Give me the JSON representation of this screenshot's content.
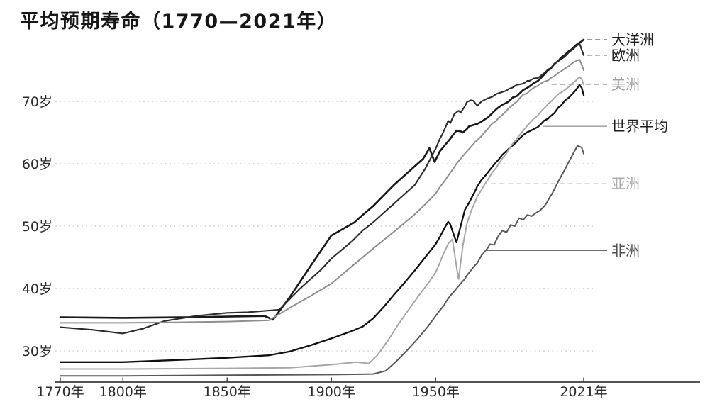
{
  "title": "平均预期寿命（1770—2021年）",
  "chart_data": {
    "type": "line",
    "title": "平均预期寿命（1770—2021年）",
    "grid": "horizontal-dotted",
    "legend_position": "right-line-end-labels",
    "x_axis": {
      "min": 1770,
      "max": 2021,
      "ticks": [
        {
          "year": 1770,
          "label": "1770年"
        },
        {
          "year": 1800,
          "label": "1800年"
        },
        {
          "year": 1850,
          "label": "1850年"
        },
        {
          "year": 1900,
          "label": "1900年"
        },
        {
          "year": 1950,
          "label": "1950年"
        },
        {
          "year": 2021,
          "label": "2021年"
        }
      ]
    },
    "y_axis": {
      "unit": "岁",
      "displayed_range": [
        30,
        70
      ],
      "ticks": [
        {
          "value": 70,
          "label": "70岁"
        },
        {
          "value": 60,
          "label": "60岁"
        },
        {
          "value": 50,
          "label": "50岁"
        },
        {
          "value": 40,
          "label": "40岁"
        },
        {
          "value": 30,
          "label": "30岁"
        }
      ]
    },
    "series": [
      {
        "id": "oceania",
        "name": "大洋洲",
        "color": "#181818",
        "label_color": "#1c1c1c",
        "stroke_width": 2.6,
        "leader": {
          "at_value": 79.9,
          "from_year": 2022.4,
          "style": "dashed",
          "color": "#8a8a8a"
        },
        "points": [
          [
            1770,
            35.4
          ],
          [
            1800,
            35.3
          ],
          [
            1830,
            35.4
          ],
          [
            1850,
            35.5
          ],
          [
            1868,
            35.6
          ],
          [
            1872,
            35.0
          ],
          [
            1880,
            38.6
          ],
          [
            1890,
            43.6
          ],
          [
            1900,
            48.5
          ],
          [
            1911,
            50.6
          ],
          [
            1915,
            51.8
          ],
          [
            1920,
            53.2
          ],
          [
            1930,
            56.6
          ],
          [
            1940,
            59.6
          ],
          [
            1944,
            60.8
          ],
          [
            1947,
            62.5
          ],
          [
            1949.5,
            60.3
          ],
          [
            1952,
            62.0
          ],
          [
            1955,
            63.2
          ],
          [
            1958,
            64.5
          ],
          [
            1960,
            65.3
          ],
          [
            1963,
            65.0
          ],
          [
            1966,
            66.0
          ],
          [
            1970,
            66.4
          ],
          [
            1975,
            67.4
          ],
          [
            1980,
            69.0
          ],
          [
            1985,
            70.0
          ],
          [
            1990,
            71.2
          ],
          [
            1995,
            72.4
          ],
          [
            2000,
            73.6
          ],
          [
            2005,
            75.2
          ],
          [
            2010,
            77.0
          ],
          [
            2015,
            78.3
          ],
          [
            2018,
            79.2
          ],
          [
            2021,
            79.9
          ]
        ]
      },
      {
        "id": "europe",
        "name": "欧洲",
        "color": "#2b2b2b",
        "label_color": "#1c1c1c",
        "stroke_width": 2.1,
        "leader": {
          "at_value": 77.4,
          "from_year": 2022.4,
          "style": "dashed",
          "color": "#8a8a8a"
        },
        "points": [
          [
            1770,
            33.8
          ],
          [
            1785,
            33.4
          ],
          [
            1800,
            32.8
          ],
          [
            1810,
            33.6
          ],
          [
            1820,
            34.8
          ],
          [
            1835,
            35.6
          ],
          [
            1850,
            36.1
          ],
          [
            1860,
            36.2
          ],
          [
            1875,
            36.6
          ],
          [
            1885,
            40.0
          ],
          [
            1895,
            43.0
          ],
          [
            1900,
            44.8
          ],
          [
            1910,
            47.6
          ],
          [
            1915,
            49.3
          ],
          [
            1920,
            50.6
          ],
          [
            1925,
            52.1
          ],
          [
            1930,
            53.6
          ],
          [
            1935,
            55.1
          ],
          [
            1940,
            56.6
          ],
          [
            1945,
            59.2
          ],
          [
            1950,
            62.4
          ],
          [
            1953,
            64.6
          ],
          [
            1956,
            66.9
          ],
          [
            1957,
            66.5
          ],
          [
            1959,
            68.0
          ],
          [
            1961,
            68.5
          ],
          [
            1962,
            68.2
          ],
          [
            1965,
            69.9
          ],
          [
            1968,
            70.1
          ],
          [
            1970,
            69.3
          ],
          [
            1972,
            70.0
          ],
          [
            1975,
            70.5
          ],
          [
            1980,
            71.3
          ],
          [
            1985,
            72.0
          ],
          [
            1990,
            72.7
          ],
          [
            1995,
            73.3
          ],
          [
            2000,
            74.0
          ],
          [
            2005,
            75.3
          ],
          [
            2010,
            76.7
          ],
          [
            2014,
            77.9
          ],
          [
            2017,
            78.7
          ],
          [
            2019,
            79.3
          ],
          [
            2020,
            78.3
          ],
          [
            2021,
            77.4
          ]
        ]
      },
      {
        "id": "americas",
        "name": "美洲",
        "color": "#8e8e8e",
        "label_color": "#9b9b9b",
        "stroke_width": 2.0,
        "leader": {
          "at_value": 72.7,
          "from_year": 2005.6,
          "style": "dashed",
          "color": "#b3b3b3"
        },
        "points": [
          [
            1770,
            34.5
          ],
          [
            1800,
            34.5
          ],
          [
            1830,
            34.6
          ],
          [
            1850,
            34.7
          ],
          [
            1870,
            34.9
          ],
          [
            1880,
            36.9
          ],
          [
            1890,
            38.8
          ],
          [
            1900,
            40.8
          ],
          [
            1910,
            43.6
          ],
          [
            1920,
            46.4
          ],
          [
            1930,
            49.1
          ],
          [
            1940,
            51.9
          ],
          [
            1945,
            53.5
          ],
          [
            1950,
            55.2
          ],
          [
            1955,
            57.6
          ],
          [
            1960,
            60.0
          ],
          [
            1965,
            62.0
          ],
          [
            1970,
            63.8
          ],
          [
            1975,
            65.6
          ],
          [
            1980,
            67.3
          ],
          [
            1985,
            68.9
          ],
          [
            1990,
            70.4
          ],
          [
            1995,
            71.7
          ],
          [
            2000,
            72.8
          ],
          [
            2005,
            73.7
          ],
          [
            2010,
            74.8
          ],
          [
            2015,
            76.0
          ],
          [
            2019,
            76.7
          ],
          [
            2020,
            75.9
          ],
          [
            2021,
            75.0
          ]
        ]
      },
      {
        "id": "world",
        "name": "世界平均",
        "color": "#101010",
        "label_color": "#1c1c1c",
        "stroke_width": 2.3,
        "leader": {
          "at_value": 66.0,
          "from_year": 2001.6,
          "style": "solid",
          "color": "#9a9a9a"
        },
        "points": [
          [
            1770,
            28.2
          ],
          [
            1800,
            28.2
          ],
          [
            1830,
            28.6
          ],
          [
            1850,
            28.9
          ],
          [
            1870,
            29.3
          ],
          [
            1880,
            29.9
          ],
          [
            1890,
            30.9
          ],
          [
            1900,
            32.0
          ],
          [
            1910,
            33.2
          ],
          [
            1915,
            33.9
          ],
          [
            1920,
            35.2
          ],
          [
            1925,
            37.0
          ],
          [
            1930,
            39.0
          ],
          [
            1935,
            40.9
          ],
          [
            1940,
            42.9
          ],
          [
            1945,
            45.0
          ],
          [
            1950,
            47.1
          ],
          [
            1953,
            48.9
          ],
          [
            1956,
            50.7
          ],
          [
            1957,
            50.3
          ],
          [
            1960,
            47.4
          ],
          [
            1962,
            50.0
          ],
          [
            1964,
            52.6
          ],
          [
            1967,
            54.4
          ],
          [
            1970,
            56.4
          ],
          [
            1975,
            58.6
          ],
          [
            1980,
            60.6
          ],
          [
            1985,
            62.4
          ],
          [
            1990,
            64.0
          ],
          [
            1995,
            65.2
          ],
          [
            2000,
            66.2
          ],
          [
            2005,
            67.6
          ],
          [
            2010,
            69.3
          ],
          [
            2015,
            71.0
          ],
          [
            2019,
            72.6
          ],
          [
            2020,
            72.2
          ],
          [
            2021,
            71.0
          ]
        ]
      },
      {
        "id": "asia",
        "name": "亚洲",
        "color": "#a6a6a6",
        "label_color": "#ababab",
        "stroke_width": 2.0,
        "leader": {
          "at_value": 56.8,
          "from_year": 1976.6,
          "style": "dashed",
          "color": "#b8b8b8"
        },
        "points": [
          [
            1770,
            27.1
          ],
          [
            1800,
            27.1
          ],
          [
            1850,
            27.2
          ],
          [
            1880,
            27.3
          ],
          [
            1900,
            27.8
          ],
          [
            1912,
            28.2
          ],
          [
            1918,
            28.0
          ],
          [
            1922,
            29.3
          ],
          [
            1927,
            31.6
          ],
          [
            1932,
            34.2
          ],
          [
            1937,
            36.6
          ],
          [
            1942,
            38.9
          ],
          [
            1947,
            41.1
          ],
          [
            1950,
            42.6
          ],
          [
            1953,
            45.0
          ],
          [
            1956,
            47.2
          ],
          [
            1958,
            47.9
          ],
          [
            1961,
            41.5
          ],
          [
            1963,
            46.8
          ],
          [
            1965,
            50.4
          ],
          [
            1967,
            52.4
          ],
          [
            1970,
            54.8
          ],
          [
            1975,
            57.4
          ],
          [
            1980,
            59.9
          ],
          [
            1985,
            62.3
          ],
          [
            1990,
            64.5
          ],
          [
            1995,
            66.5
          ],
          [
            2000,
            68.2
          ],
          [
            2005,
            69.9
          ],
          [
            2010,
            71.4
          ],
          [
            2015,
            72.7
          ],
          [
            2019,
            73.9
          ],
          [
            2020,
            73.6
          ],
          [
            2021,
            72.7
          ]
        ]
      },
      {
        "id": "africa",
        "name": "非洲",
        "color": "#585858",
        "label_color": "#4e4e4e",
        "stroke_width": 2.0,
        "leader": {
          "at_value": 46.1,
          "from_year": 1973.6,
          "style": "solid",
          "color": "#6e6e6e"
        },
        "points": [
          [
            1770,
            26.0
          ],
          [
            1800,
            26.0
          ],
          [
            1850,
            26.1
          ],
          [
            1900,
            26.2
          ],
          [
            1920,
            26.3
          ],
          [
            1926,
            26.8
          ],
          [
            1931,
            28.3
          ],
          [
            1936,
            30.0
          ],
          [
            1941,
            31.8
          ],
          [
            1946,
            33.8
          ],
          [
            1950,
            35.6
          ],
          [
            1955,
            37.9
          ],
          [
            1960,
            40.0
          ],
          [
            1965,
            42.1
          ],
          [
            1970,
            44.1
          ],
          [
            1973,
            45.7
          ],
          [
            1976,
            47.1
          ],
          [
            1978,
            47.0
          ],
          [
            1980,
            48.4
          ],
          [
            1982,
            49.3
          ],
          [
            1984,
            49.0
          ],
          [
            1986,
            50.2
          ],
          [
            1988,
            50.0
          ],
          [
            1990,
            51.3
          ],
          [
            1992,
            51.0
          ],
          [
            1994,
            51.8
          ],
          [
            1996,
            51.6
          ],
          [
            1998,
            52.1
          ],
          [
            2000,
            52.5
          ],
          [
            2003,
            53.6
          ],
          [
            2006,
            55.3
          ],
          [
            2010,
            57.9
          ],
          [
            2014,
            60.4
          ],
          [
            2018,
            62.9
          ],
          [
            2020,
            62.6
          ],
          [
            2021,
            61.6
          ]
        ]
      }
    ]
  }
}
